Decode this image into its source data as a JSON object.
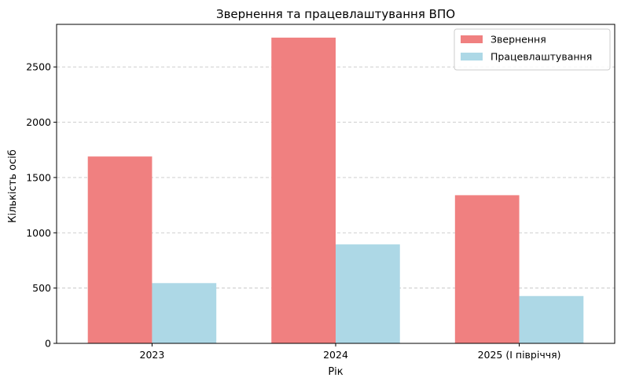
{
  "chart_data": {
    "type": "bar",
    "title": "Звернення та працевлаштування ВПО",
    "xlabel": "Рік",
    "ylabel": "Кількість осіб",
    "categories": [
      "2023",
      "2024",
      "2025 (І півріччя)"
    ],
    "series": [
      {
        "name": "Звернення",
        "values": [
          1690,
          2765,
          1340
        ],
        "color": "#f08080"
      },
      {
        "name": "Працевлаштування",
        "values": [
          545,
          895,
          428
        ],
        "color": "#add8e6"
      }
    ],
    "ylim": [
      0,
      2885
    ],
    "yticks": [
      0,
      500,
      1000,
      1500,
      2000,
      2500
    ],
    "grid": "y-dashed",
    "legend_position": "top-right"
  }
}
